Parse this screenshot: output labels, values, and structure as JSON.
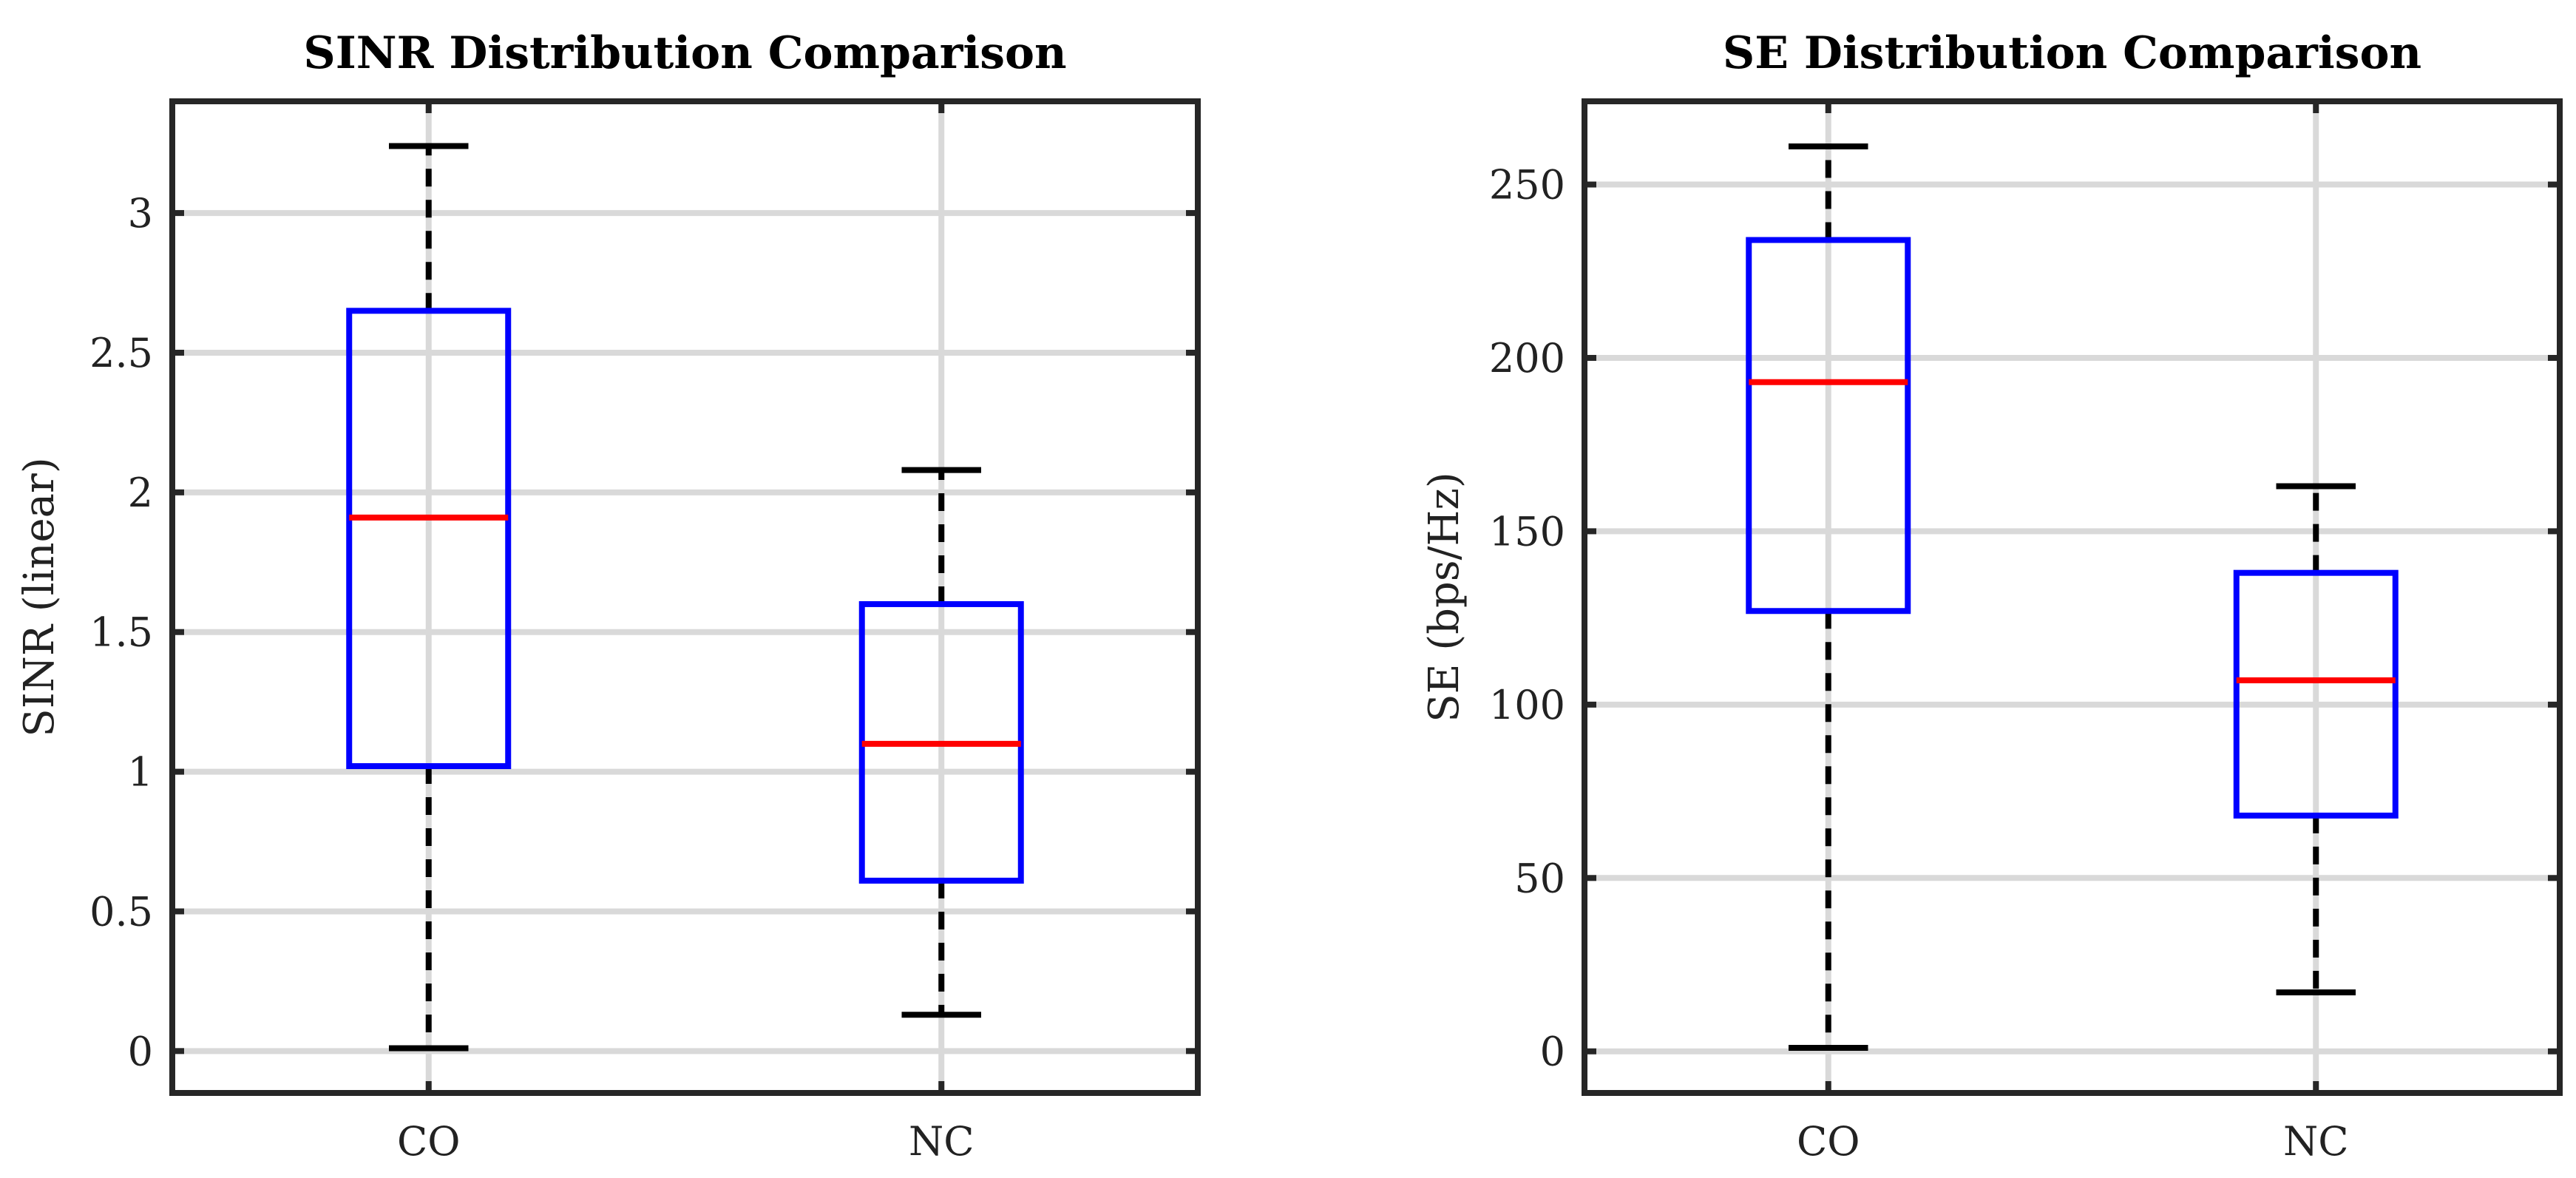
{
  "chart_data": [
    {
      "type": "boxplot",
      "title": "SINR Distribution Comparison",
      "xlabel": "",
      "ylabel": "SINR (linear)",
      "categories": [
        "CO",
        "NC"
      ],
      "ylim": [
        -0.15,
        3.4
      ],
      "yticks": [
        0,
        0.5,
        1,
        1.5,
        2,
        2.5,
        3
      ],
      "ytick_labels": [
        "0",
        "0.5",
        "1",
        "1.5",
        "2",
        "2.5",
        "3"
      ],
      "grid": true,
      "boxes": [
        {
          "category": "CO",
          "whisker_low": 0.01,
          "q1": 1.02,
          "median": 1.91,
          "q3": 2.65,
          "whisker_high": 3.24
        },
        {
          "category": "NC",
          "whisker_low": 0.13,
          "q1": 0.61,
          "median": 1.1,
          "q3": 1.6,
          "whisker_high": 2.08
        }
      ]
    },
    {
      "type": "boxplot",
      "title": "SE Distribution Comparison",
      "xlabel": "",
      "ylabel": "SE (bps/Hz)",
      "categories": [
        "CO",
        "NC"
      ],
      "ylim": [
        -12,
        274
      ],
      "yticks": [
        0,
        50,
        100,
        150,
        200,
        250
      ],
      "ytick_labels": [
        "0",
        "50",
        "100",
        "150",
        "200",
        "250"
      ],
      "grid": true,
      "boxes": [
        {
          "category": "CO",
          "whisker_low": 1,
          "q1": 127,
          "median": 193,
          "q3": 234,
          "whisker_high": 261
        },
        {
          "category": "NC",
          "whisker_low": 17,
          "q1": 68,
          "median": 107,
          "q3": 138,
          "whisker_high": 163
        }
      ]
    }
  ],
  "colors": {
    "box": "#0000ff",
    "median": "#ff0000",
    "whisker": "#000000",
    "grid": "#d9d9d9",
    "axes": "#262626"
  }
}
